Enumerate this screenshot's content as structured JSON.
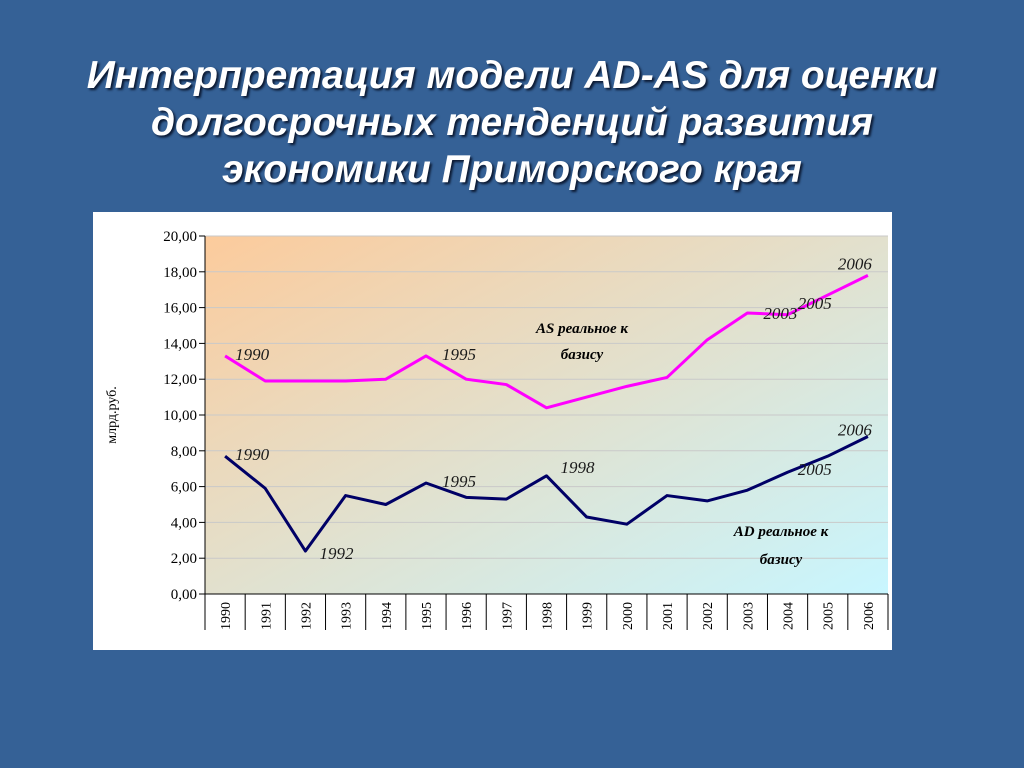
{
  "slide": {
    "title_lines": [
      "Интерпретация модели AD-AS для оценки",
      "долгосрочных тенденций развития",
      "экономики Приморского края"
    ]
  },
  "colors": {
    "background": "#356196",
    "as_line": "#ff00ff",
    "ad_line": "#000066",
    "plot_gradient_start": "#fccb9c",
    "plot_gradient_end": "#c8f6ff"
  },
  "chart_data": {
    "type": "line",
    "title": "",
    "xlabel": "",
    "ylabel": "млрд.руб.",
    "ylim": [
      0,
      20
    ],
    "yticks": [
      "0,00",
      "2,00",
      "4,00",
      "6,00",
      "8,00",
      "10,00",
      "12,00",
      "14,00",
      "16,00",
      "18,00",
      "20,00"
    ],
    "categories": [
      "1990",
      "1991",
      "1992",
      "1993",
      "1994",
      "1995",
      "1996",
      "1997",
      "1998",
      "1999",
      "2000",
      "2001",
      "2002",
      "2003",
      "2004",
      "2005",
      "2006"
    ],
    "grid": "horizontal",
    "series": [
      {
        "key": "as",
        "name": "AS реальное к базису",
        "values": [
          13.3,
          11.9,
          11.9,
          11.9,
          12.0,
          13.3,
          12.0,
          11.7,
          10.4,
          11.0,
          11.6,
          12.1,
          14.2,
          15.7,
          15.6,
          16.7,
          17.8
        ]
      },
      {
        "key": "ad",
        "name": "AD реальное к базису",
        "values": [
          7.7,
          5.9,
          2.4,
          5.5,
          5.0,
          6.2,
          5.4,
          5.3,
          6.6,
          4.3,
          3.9,
          5.5,
          5.2,
          5.8,
          6.8,
          7.7,
          8.8
        ]
      }
    ],
    "annotations": {
      "as": {
        "series_label_lines": [
          "AS реальное к",
          "базису"
        ],
        "points": [
          {
            "year": "1990",
            "text": "1990"
          },
          {
            "year": "1995",
            "text": "1995"
          },
          {
            "year": "2003",
            "text": "2003"
          },
          {
            "year": "2006",
            "text": "2006"
          },
          {
            "year": "2005",
            "text": "2005"
          }
        ]
      },
      "ad": {
        "series_label_lines": [
          "AD реальное к",
          "базису"
        ],
        "points": [
          {
            "year": "1990",
            "text": "1990"
          },
          {
            "year": "1992",
            "text": "1992"
          },
          {
            "year": "1995",
            "text": "1995"
          },
          {
            "year": "1998",
            "text": "1998"
          },
          {
            "year": "2006",
            "text": "2006"
          },
          {
            "year": "2005",
            "text": "2005"
          }
        ]
      }
    }
  }
}
